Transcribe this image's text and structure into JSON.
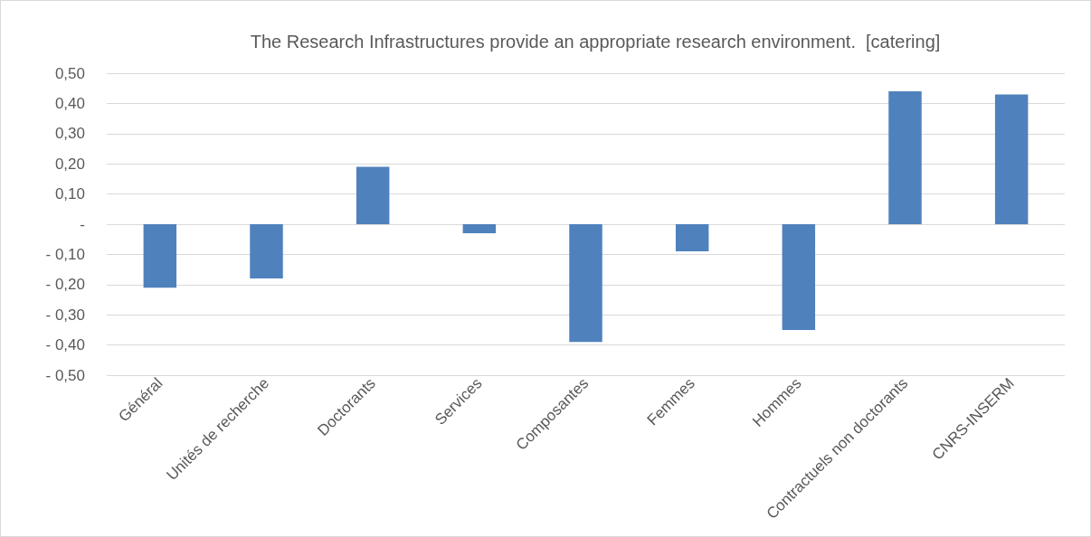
{
  "chart_data": {
    "type": "bar",
    "title": "The Research Infrastructures provide an appropriate research environment.  [catering]",
    "categories": [
      "Général",
      "Unités de recherche",
      "Doctorants",
      "Services",
      "Composantes",
      "Femmes",
      "Hommes",
      "Contractuels non doctorants",
      "CNRS-INSERM"
    ],
    "values": [
      -0.21,
      -0.18,
      0.19,
      -0.03,
      -0.39,
      -0.09,
      -0.35,
      0.44,
      0.43
    ],
    "color": "#4f81bd",
    "ylim": [
      -0.5,
      0.5
    ],
    "yticks": [
      {
        "value": -0.5,
        "label": "- 0,50"
      },
      {
        "value": -0.4,
        "label": "- 0,40"
      },
      {
        "value": -0.3,
        "label": "- 0,30"
      },
      {
        "value": -0.2,
        "label": "- 0,20"
      },
      {
        "value": -0.1,
        "label": "- 0,10"
      },
      {
        "value": 0,
        "label": "-"
      },
      {
        "value": 0.1,
        "label": "0,10"
      },
      {
        "value": 0.2,
        "label": "0,20"
      },
      {
        "value": 0.3,
        "label": "0,30"
      },
      {
        "value": 0.4,
        "label": "0,40"
      },
      {
        "value": 0.5,
        "label": "0,50"
      }
    ],
    "grid": "y"
  }
}
